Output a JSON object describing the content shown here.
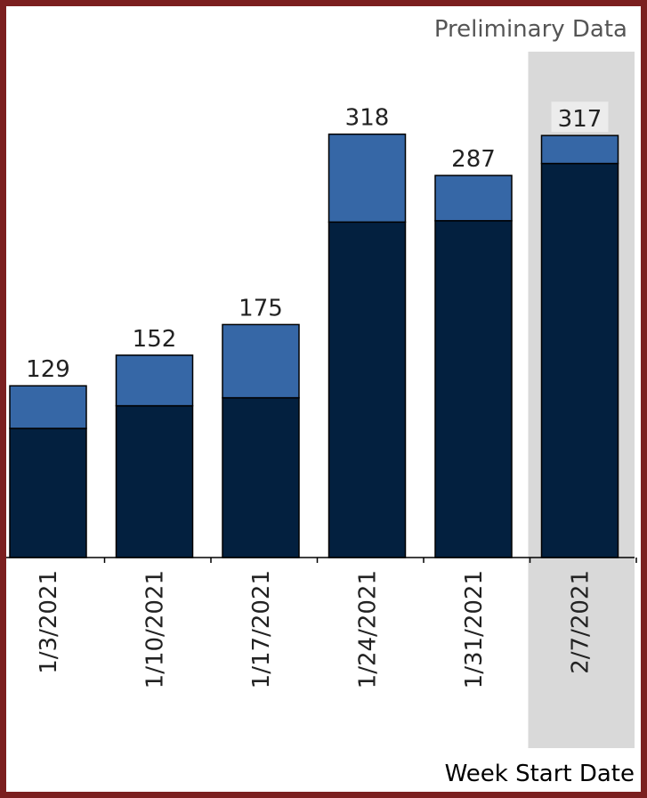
{
  "chart_data": {
    "type": "bar",
    "stacked": true,
    "categories": [
      "1/3/2021",
      "1/10/2021",
      "1/17/2021",
      "1/24/2021",
      "1/31/2021",
      "2/7/2021"
    ],
    "series": [
      {
        "values": [
          97,
          114,
          120,
          252,
          253,
          296
        ],
        "color": "#03203f"
      },
      {
        "values": [
          32,
          38,
          55,
          66,
          34,
          21
        ],
        "color": "#3667a6"
      }
    ],
    "totals": [
      129,
      152,
      175,
      318,
      287,
      317
    ],
    "xlabel": "Week Start Date",
    "ylim": [
      0,
      380
    ],
    "highlight": {
      "category": "2/7/2021",
      "label": "Preliminary Data",
      "color": "#d9d9d9"
    },
    "grid": false
  }
}
